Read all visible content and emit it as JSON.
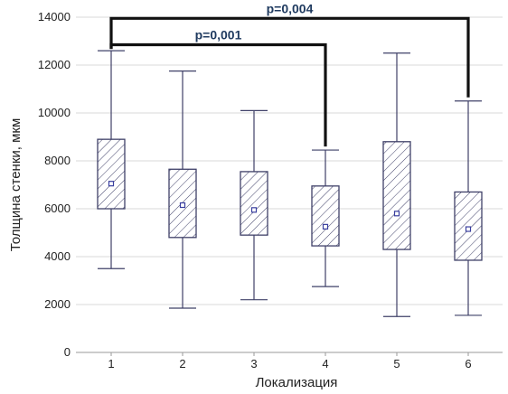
{
  "chart_data": {
    "type": "boxplot",
    "xlabel": "Локализация",
    "ylabel": "Толщина стенки, мкм",
    "ylim": [
      0,
      14000
    ],
    "yticks": [
      0,
      2000,
      4000,
      6000,
      8000,
      10000,
      12000,
      14000
    ],
    "yticks_labels": [
      "0",
      "2000",
      "4000",
      "6000",
      "8000",
      "10000",
      "12000",
      "14000"
    ],
    "grid": true,
    "categories": [
      "1",
      "2",
      "3",
      "4",
      "5",
      "6"
    ],
    "boxes": [
      {
        "category": "1",
        "min": 3500,
        "q1": 6000,
        "mean": 7050,
        "q3": 8900,
        "max": 12600
      },
      {
        "category": "2",
        "min": 1850,
        "q1": 4800,
        "mean": 6150,
        "q3": 7650,
        "max": 11750
      },
      {
        "category": "3",
        "min": 2200,
        "q1": 4900,
        "mean": 5950,
        "q3": 7550,
        "max": 10100
      },
      {
        "category": "4",
        "min": 2750,
        "q1": 4450,
        "mean": 5250,
        "q3": 6950,
        "max": 8450
      },
      {
        "category": "5",
        "min": 1500,
        "q1": 4300,
        "mean": 5800,
        "q3": 8800,
        "max": 12500
      },
      {
        "category": "6",
        "min": 1550,
        "q1": 3850,
        "mean": 5150,
        "q3": 6700,
        "max": 10500
      }
    ],
    "significance": [
      {
        "from": "1",
        "to": "4",
        "label": "p=0,001",
        "level": 12850
      },
      {
        "from": "1",
        "to": "6",
        "label": "p=0,004",
        "level": 13950
      }
    ],
    "colors": {
      "box_stroke": "#3f4068",
      "whisker": "#3f4068",
      "hatch": "#3f4068",
      "mean_marker": "#3a3f9f",
      "grid": "#d9d9d9",
      "bracket": "#111111",
      "sig_label": "#1f3a5f"
    }
  }
}
